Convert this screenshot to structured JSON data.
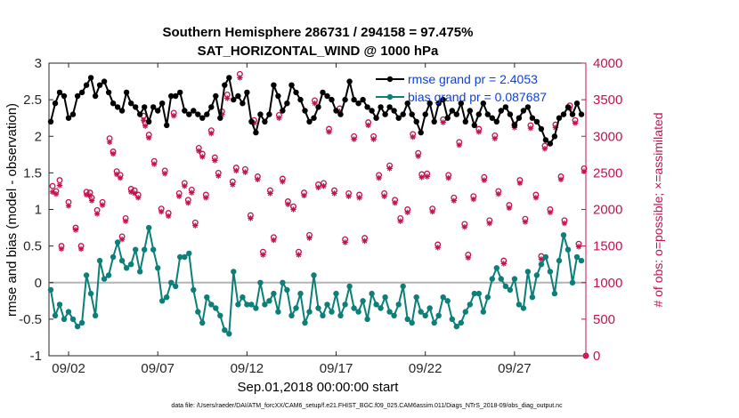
{
  "chart_data": {
    "type": "line",
    "title": "Southern Hemisphere 286731 / 294158 = 97.475%",
    "subtitle": "SAT_HORIZONTAL_WIND @ 1000 hPa",
    "xlabel": "Sep.01,2018 00:00:00 start",
    "ylabel": "rmse and bias (model - observation)",
    "y2label": "# of obs: o=possible; ×=assimilated",
    "xlim": [
      0.9,
      31.0
    ],
    "ylim": [
      -1,
      3
    ],
    "y2lim": [
      0,
      4000
    ],
    "xticks": [
      {
        "value": 2,
        "label": "09/02"
      },
      {
        "value": 7,
        "label": "09/07"
      },
      {
        "value": 12,
        "label": "09/12"
      },
      {
        "value": 17,
        "label": "09/17"
      },
      {
        "value": 22,
        "label": "09/22"
      },
      {
        "value": 27,
        "label": "09/27"
      }
    ],
    "yticks": [
      "-1",
      "-0.5",
      "0",
      "0.5",
      "1",
      "1.5",
      "2",
      "2.5",
      "3"
    ],
    "y2ticks": [
      "0",
      "500",
      "1000",
      "1500",
      "2000",
      "2500",
      "3000",
      "3500",
      "4000"
    ],
    "legend": [
      "rmse grand pr = 2.4053",
      "bias grand pr = 0.087687"
    ],
    "colors": {
      "rmse": "#000000",
      "bias": "#0b7f78",
      "obs": "#c8104f",
      "zero": "#b4b4b4",
      "legend_text": "#0a3fe6"
    },
    "x": [
      1.0,
      1.25,
      1.5,
      1.75,
      2.0,
      2.25,
      2.5,
      2.75,
      3.0,
      3.25,
      3.5,
      3.75,
      4.0,
      4.25,
      4.5,
      4.75,
      5.0,
      5.25,
      5.5,
      5.75,
      6.0,
      6.25,
      6.5,
      6.75,
      7.0,
      7.25,
      7.5,
      7.75,
      8.0,
      8.25,
      8.5,
      8.75,
      9.0,
      9.25,
      9.5,
      9.75,
      10.0,
      10.25,
      10.5,
      10.75,
      11.0,
      11.25,
      11.5,
      11.75,
      12.0,
      12.25,
      12.5,
      12.75,
      13.0,
      13.25,
      13.5,
      13.75,
      14.0,
      14.25,
      14.5,
      14.75,
      15.0,
      15.25,
      15.5,
      15.75,
      16.0,
      16.25,
      16.5,
      16.75,
      17.0,
      17.25,
      17.5,
      17.75,
      18.0,
      18.25,
      18.5,
      18.75,
      19.0,
      19.25,
      19.5,
      19.75,
      20.0,
      20.25,
      20.5,
      20.75,
      21.0,
      21.25,
      21.5,
      21.75,
      22.0,
      22.25,
      22.5,
      22.75,
      23.0,
      23.25,
      23.5,
      23.75,
      24.0,
      24.25,
      24.5,
      24.75,
      25.0,
      25.25,
      25.5,
      25.75,
      26.0,
      26.25,
      26.5,
      26.75,
      27.0,
      27.25,
      27.5,
      27.75,
      28.0,
      28.25,
      28.5,
      28.75,
      29.0,
      29.25,
      29.5,
      29.75,
      30.0,
      30.25,
      30.5,
      30.75
    ],
    "series": [
      {
        "name": "rmse",
        "values": [
          2.2,
          2.45,
          2.6,
          2.55,
          2.25,
          2.3,
          2.55,
          2.6,
          2.7,
          2.8,
          2.55,
          2.7,
          2.75,
          2.6,
          2.45,
          2.4,
          2.35,
          2.6,
          2.45,
          2.4,
          2.3,
          2.4,
          2.2,
          2.4,
          2.35,
          2.45,
          2.15,
          2.55,
          2.55,
          2.6,
          2.35,
          2.3,
          2.35,
          2.3,
          2.25,
          2.3,
          2.4,
          2.55,
          2.25,
          2.7,
          2.8,
          2.5,
          2.55,
          2.45,
          2.6,
          2.2,
          2.05,
          2.3,
          2.2,
          2.3,
          2.7,
          2.55,
          2.35,
          2.45,
          2.7,
          2.6,
          2.5,
          2.35,
          2.2,
          2.25,
          2.4,
          2.6,
          2.55,
          2.5,
          2.35,
          2.3,
          2.5,
          2.75,
          2.5,
          2.45,
          2.5,
          2.4,
          2.35,
          2.25,
          2.4,
          2.3,
          2.4,
          2.35,
          2.25,
          2.3,
          2.45,
          2.3,
          2.2,
          2.05,
          2.3,
          2.45,
          2.2,
          2.45,
          2.5,
          2.25,
          2.35,
          2.3,
          2.45,
          2.2,
          2.35,
          2.15,
          2.3,
          2.45,
          2.3,
          2.25,
          2.2,
          2.35,
          2.4,
          2.3,
          2.15,
          2.25,
          2.35,
          2.4,
          2.25,
          2.2,
          2.1,
          1.95,
          1.9,
          2.0,
          2.25,
          2.3,
          2.4,
          2.3,
          2.45,
          2.3
        ]
      },
      {
        "name": "bias",
        "values": [
          -0.1,
          -0.45,
          -0.3,
          -0.5,
          -0.4,
          -0.5,
          -0.6,
          -0.55,
          0.1,
          -0.15,
          -0.45,
          0.3,
          0.05,
          0.1,
          0.35,
          0.55,
          0.3,
          0.2,
          0.25,
          0.45,
          0.15,
          0.45,
          0.75,
          0.45,
          0.2,
          -0.25,
          -0.2,
          0.0,
          -0.05,
          0.35,
          0.35,
          0.4,
          -0.1,
          -0.4,
          -0.55,
          -0.2,
          -0.3,
          -0.35,
          -0.45,
          -0.65,
          -0.7,
          0.15,
          -0.3,
          -0.2,
          -0.3,
          -0.3,
          -0.35,
          0.0,
          -0.3,
          -0.25,
          -0.15,
          -0.4,
          0.0,
          -0.1,
          -0.45,
          -0.35,
          -0.15,
          -0.55,
          -0.4,
          0.1,
          -0.35,
          -0.45,
          -0.3,
          -0.4,
          -0.15,
          -0.45,
          -0.3,
          -0.05,
          -0.35,
          -0.4,
          -0.25,
          -0.5,
          -0.15,
          -0.3,
          -0.35,
          -0.2,
          -0.4,
          -0.45,
          -0.3,
          -0.05,
          -0.5,
          -0.55,
          -0.2,
          -0.4,
          -0.45,
          -0.35,
          -0.55,
          -0.45,
          -0.2,
          -0.25,
          -0.5,
          -0.6,
          -0.55,
          -0.4,
          -0.3,
          -0.15,
          -0.15,
          -0.4,
          -0.2,
          0.05,
          0.2,
          0.05,
          -0.05,
          -0.1,
          0.05,
          -0.3,
          -0.35,
          0.15,
          -0.2,
          0.1,
          0.25,
          0.35,
          0.15,
          -0.15,
          0.3,
          0.65,
          0.45,
          0.0,
          0.35,
          0.3
        ]
      }
    ],
    "obs_possible": [
      [
        1.1,
        2320
      ],
      [
        1.3,
        2250
      ],
      [
        1.5,
        2400
      ],
      [
        1.6,
        1500
      ],
      [
        2.0,
        2100
      ],
      [
        2.4,
        1750
      ],
      [
        2.7,
        1500
      ],
      [
        3.0,
        2240
      ],
      [
        3.2,
        2230
      ],
      [
        3.3,
        2160
      ],
      [
        3.6,
        1990
      ],
      [
        3.9,
        2100
      ],
      [
        4.3,
        2970
      ],
      [
        4.5,
        2790
      ],
      [
        4.7,
        2520
      ],
      [
        4.9,
        2470
      ],
      [
        5.0,
        1630
      ],
      [
        5.2,
        1880
      ],
      [
        5.5,
        2280
      ],
      [
        5.7,
        2260
      ],
      [
        5.9,
        2200
      ],
      [
        6.2,
        3280
      ],
      [
        6.3,
        3180
      ],
      [
        6.5,
        3020
      ],
      [
        6.8,
        2660
      ],
      [
        7.2,
        2010
      ],
      [
        7.4,
        2530
      ],
      [
        7.6,
        1950
      ],
      [
        7.9,
        3320
      ],
      [
        8.2,
        2220
      ],
      [
        8.5,
        2360
      ],
      [
        8.7,
        2130
      ],
      [
        8.9,
        2270
      ],
      [
        9.1,
        1820
      ],
      [
        9.3,
        2840
      ],
      [
        9.5,
        2760
      ],
      [
        9.7,
        2200
      ],
      [
        10.0,
        3080
      ],
      [
        10.2,
        2710
      ],
      [
        10.4,
        2500
      ],
      [
        10.6,
        3340
      ],
      [
        10.9,
        3570
      ],
      [
        11.2,
        2380
      ],
      [
        11.4,
        2570
      ],
      [
        11.6,
        3850
      ],
      [
        11.9,
        2550
      ],
      [
        12.2,
        1920
      ],
      [
        12.4,
        3220
      ],
      [
        12.6,
        2450
      ],
      [
        12.9,
        1420
      ],
      [
        13.3,
        2260
      ],
      [
        13.5,
        1620
      ],
      [
        13.8,
        3290
      ],
      [
        14.0,
        2420
      ],
      [
        14.3,
        2110
      ],
      [
        14.6,
        2040
      ],
      [
        14.9,
        1420
      ],
      [
        15.2,
        2230
      ],
      [
        15.5,
        1650
      ],
      [
        15.8,
        3490
      ],
      [
        16.0,
        2340
      ],
      [
        16.3,
        2360
      ],
      [
        16.6,
        3100
      ],
      [
        16.9,
        2260
      ],
      [
        17.2,
        3380
      ],
      [
        17.5,
        1590
      ],
      [
        17.7,
        2220
      ],
      [
        18.0,
        3000
      ],
      [
        18.3,
        2200
      ],
      [
        18.6,
        1610
      ],
      [
        18.8,
        3190
      ],
      [
        19.1,
        3000
      ],
      [
        19.4,
        2470
      ],
      [
        19.7,
        2220
      ],
      [
        20.0,
        2600
      ],
      [
        20.3,
        2130
      ],
      [
        20.6,
        1880
      ],
      [
        21.0,
        2000
      ],
      [
        21.3,
        3030
      ],
      [
        21.6,
        2770
      ],
      [
        21.8,
        2480
      ],
      [
        22.1,
        2490
      ],
      [
        22.4,
        2010
      ],
      [
        22.7,
        1520
      ],
      [
        23.0,
        3230
      ],
      [
        23.3,
        2470
      ],
      [
        23.6,
        2160
      ],
      [
        23.9,
        2920
      ],
      [
        24.2,
        1800
      ],
      [
        24.4,
        1380
      ],
      [
        24.7,
        2180
      ],
      [
        25.0,
        3100
      ],
      [
        25.3,
        2440
      ],
      [
        25.6,
        1850
      ],
      [
        25.9,
        3010
      ],
      [
        26.1,
        2250
      ],
      [
        26.4,
        1300
      ],
      [
        26.7,
        2060
      ],
      [
        27.0,
        3160
      ],
      [
        27.3,
        2400
      ],
      [
        27.6,
        1870
      ],
      [
        27.9,
        3150
      ],
      [
        28.2,
        2200
      ],
      [
        28.5,
        1360
      ],
      [
        28.7,
        2870
      ],
      [
        29.0,
        2000
      ],
      [
        29.3,
        3160
      ],
      [
        29.6,
        2450
      ],
      [
        29.8,
        1850
      ],
      [
        30.1,
        3420
      ],
      [
        30.4,
        3220
      ],
      [
        30.6,
        1530
      ],
      [
        30.9,
        2560
      ],
      [
        31.0,
        0
      ]
    ],
    "obs_assimilated": [
      [
        1.1,
        2240
      ],
      [
        1.3,
        2210
      ],
      [
        1.5,
        2330
      ],
      [
        1.6,
        1460
      ],
      [
        2.0,
        2050
      ],
      [
        2.4,
        1720
      ],
      [
        2.7,
        1460
      ],
      [
        3.0,
        2200
      ],
      [
        3.2,
        2190
      ],
      [
        3.3,
        2120
      ],
      [
        3.6,
        1940
      ],
      [
        3.9,
        2060
      ],
      [
        4.3,
        2920
      ],
      [
        4.5,
        2760
      ],
      [
        4.7,
        2480
      ],
      [
        4.9,
        2430
      ],
      [
        5.0,
        1590
      ],
      [
        5.2,
        1840
      ],
      [
        5.5,
        2240
      ],
      [
        5.7,
        2220
      ],
      [
        5.9,
        2160
      ],
      [
        6.2,
        3220
      ],
      [
        6.3,
        3140
      ],
      [
        6.5,
        2980
      ],
      [
        6.8,
        2620
      ],
      [
        7.2,
        1970
      ],
      [
        7.4,
        2490
      ],
      [
        7.6,
        1910
      ],
      [
        7.9,
        3280
      ],
      [
        8.2,
        2180
      ],
      [
        8.5,
        2320
      ],
      [
        8.7,
        2090
      ],
      [
        8.9,
        2230
      ],
      [
        9.1,
        1780
      ],
      [
        9.3,
        2800
      ],
      [
        9.5,
        2720
      ],
      [
        9.7,
        2160
      ],
      [
        10.0,
        3040
      ],
      [
        10.2,
        2670
      ],
      [
        10.4,
        2460
      ],
      [
        10.6,
        3300
      ],
      [
        10.9,
        3520
      ],
      [
        11.2,
        2340
      ],
      [
        11.4,
        2530
      ],
      [
        11.6,
        3800
      ],
      [
        11.9,
        2510
      ],
      [
        12.2,
        1880
      ],
      [
        12.4,
        3180
      ],
      [
        12.6,
        2410
      ],
      [
        12.9,
        1380
      ],
      [
        13.3,
        2220
      ],
      [
        13.5,
        1580
      ],
      [
        13.8,
        3250
      ],
      [
        14.0,
        2380
      ],
      [
        14.3,
        2070
      ],
      [
        14.6,
        2000
      ],
      [
        14.9,
        1380
      ],
      [
        15.2,
        2190
      ],
      [
        15.5,
        1610
      ],
      [
        15.8,
        3450
      ],
      [
        16.0,
        2300
      ],
      [
        16.3,
        2320
      ],
      [
        16.6,
        3060
      ],
      [
        16.9,
        2220
      ],
      [
        17.2,
        3340
      ],
      [
        17.5,
        1550
      ],
      [
        17.7,
        2180
      ],
      [
        18.0,
        2960
      ],
      [
        18.3,
        2160
      ],
      [
        18.6,
        1570
      ],
      [
        18.8,
        3150
      ],
      [
        19.1,
        2960
      ],
      [
        19.4,
        2430
      ],
      [
        19.7,
        2180
      ],
      [
        20.0,
        2560
      ],
      [
        20.3,
        2090
      ],
      [
        20.6,
        1840
      ],
      [
        21.0,
        1960
      ],
      [
        21.3,
        2990
      ],
      [
        21.6,
        2730
      ],
      [
        21.8,
        2440
      ],
      [
        22.1,
        2450
      ],
      [
        22.4,
        1970
      ],
      [
        22.7,
        1480
      ],
      [
        23.0,
        3190
      ],
      [
        23.3,
        2430
      ],
      [
        23.6,
        2120
      ],
      [
        23.9,
        2880
      ],
      [
        24.2,
        1760
      ],
      [
        24.4,
        1340
      ],
      [
        24.7,
        2140
      ],
      [
        25.0,
        3060
      ],
      [
        25.3,
        2400
      ],
      [
        25.6,
        1810
      ],
      [
        25.9,
        2970
      ],
      [
        26.1,
        2210
      ],
      [
        26.4,
        1260
      ],
      [
        26.7,
        2020
      ],
      [
        27.0,
        3120
      ],
      [
        27.3,
        2360
      ],
      [
        27.6,
        1830
      ],
      [
        27.9,
        3110
      ],
      [
        28.2,
        2160
      ],
      [
        28.5,
        1320
      ],
      [
        28.7,
        2830
      ],
      [
        29.0,
        1960
      ],
      [
        29.3,
        3120
      ],
      [
        29.6,
        2410
      ],
      [
        29.8,
        1810
      ],
      [
        30.1,
        3380
      ],
      [
        30.4,
        3180
      ],
      [
        30.6,
        1490
      ],
      [
        30.9,
        2520
      ],
      [
        31.0,
        0
      ]
    ],
    "footer": "data file: /Users/raeder/DAI/ATM_forcXX/CAM6_setup/f.e21.FHIST_BGC.f09_025.CAM6assim.011/Diags_NTrS_2018-09/obs_diag_output.nc"
  }
}
